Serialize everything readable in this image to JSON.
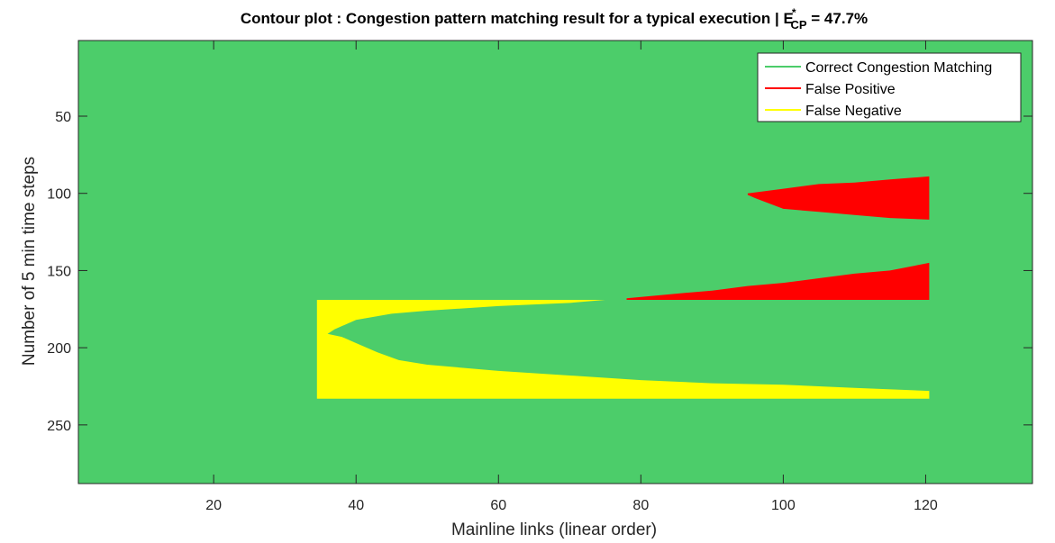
{
  "chart_data": {
    "type": "heatmap",
    "title": "Contour plot : Congestion pattern matching result for a typical execution | E",
    "title_sup": "*",
    "title_sub": "CP",
    "title_suffix": " = 47.7%",
    "xlabel": "Mainline links (linear order)",
    "ylabel": "Number of 5 min time steps",
    "xlim": [
      1,
      135
    ],
    "ylim": [
      1,
      288
    ],
    "y_reversed": true,
    "xticks": [
      20,
      40,
      60,
      80,
      100,
      120
    ],
    "yticks": [
      50,
      100,
      150,
      200,
      250
    ],
    "background_class": "Correct Congestion Matching",
    "colors": {
      "correct": "#4ccd6a",
      "false_positive": "#ff0000",
      "false_negative": "#ffff00",
      "legend_correct_line": "#4ccd6a",
      "legend_fp_line": "#ff0000",
      "legend_fn_line": "#ffff00"
    },
    "legend": {
      "placement": "top-right",
      "entries": [
        {
          "key": "correct",
          "label": "Correct Congestion Matching"
        },
        {
          "key": "false_positive",
          "label": "False Positive"
        },
        {
          "key": "false_negative",
          "label": "False Negative"
        }
      ]
    },
    "regions": [
      {
        "class": "false_positive",
        "name": "fp-upper",
        "polygon": [
          [
            95,
            100
          ],
          [
            100,
            97
          ],
          [
            105,
            94
          ],
          [
            110,
            93
          ],
          [
            115,
            91
          ],
          [
            120.5,
            89
          ],
          [
            120.5,
            117
          ],
          [
            115,
            116
          ],
          [
            110,
            114
          ],
          [
            105,
            112
          ],
          [
            100,
            110
          ],
          [
            96,
            103
          ],
          [
            95,
            101
          ]
        ]
      },
      {
        "class": "false_positive",
        "name": "fp-lower",
        "polygon": [
          [
            78,
            168
          ],
          [
            85,
            165
          ],
          [
            90,
            163
          ],
          [
            95,
            160
          ],
          [
            100,
            158
          ],
          [
            105,
            155
          ],
          [
            110,
            152
          ],
          [
            115,
            150
          ],
          [
            120.5,
            145
          ],
          [
            120.5,
            169
          ],
          [
            78,
            169
          ]
        ]
      },
      {
        "class": "false_negative",
        "name": "fn-band",
        "polygon": [
          [
            34.5,
            169
          ],
          [
            75,
            169
          ],
          [
            70,
            171
          ],
          [
            60,
            173
          ],
          [
            50,
            176
          ],
          [
            45,
            178
          ],
          [
            40,
            182
          ],
          [
            37,
            188
          ],
          [
            36,
            191
          ],
          [
            38,
            193
          ],
          [
            40,
            197
          ],
          [
            43,
            203
          ],
          [
            46,
            208
          ],
          [
            50,
            211
          ],
          [
            60,
            215
          ],
          [
            70,
            218
          ],
          [
            80,
            221
          ],
          [
            90,
            223
          ],
          [
            100,
            224
          ],
          [
            110,
            226
          ],
          [
            120.5,
            228
          ],
          [
            120.5,
            233
          ],
          [
            34.5,
            233
          ]
        ]
      }
    ]
  }
}
